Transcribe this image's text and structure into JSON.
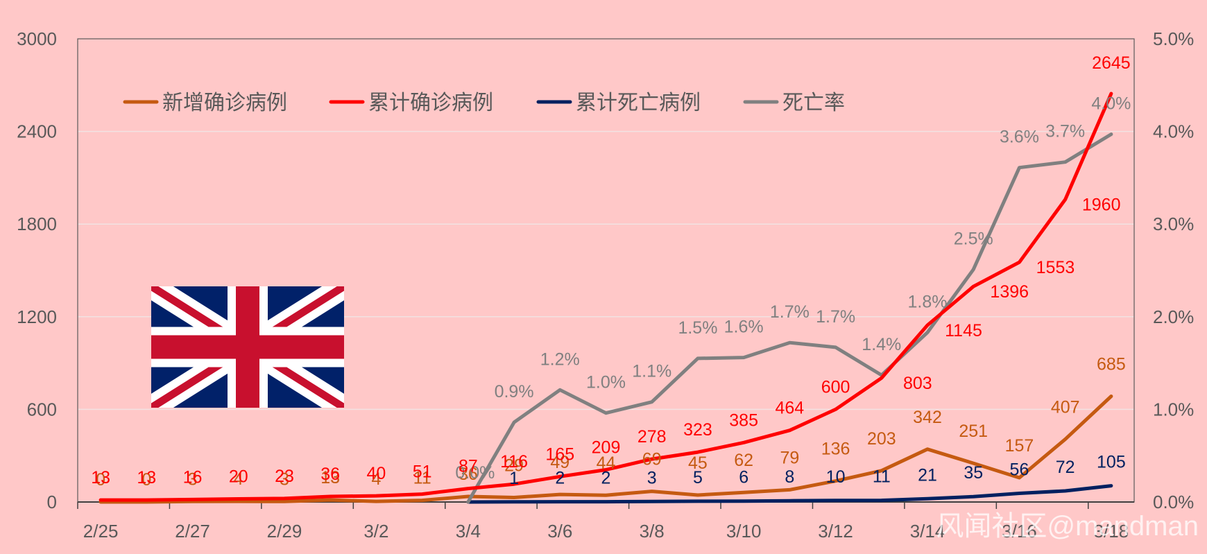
{
  "chart_data": {
    "type": "line",
    "title": "",
    "xlabel": "",
    "ylabel": "",
    "categories": [
      "2/25",
      "2/26",
      "2/27",
      "2/28",
      "2/29",
      "3/1",
      "3/2",
      "3/3",
      "3/4",
      "3/5",
      "3/6",
      "3/7",
      "3/8",
      "3/9",
      "3/10",
      "3/11",
      "3/12",
      "3/13",
      "3/14",
      "3/15",
      "3/16",
      "3/17",
      "3/18"
    ],
    "x_tick_labels": [
      "2/25",
      "2/27",
      "2/29",
      "3/2",
      "3/4",
      "3/6",
      "3/8",
      "3/10",
      "3/12",
      "3/14",
      "3/16",
      "3/18"
    ],
    "y_left": {
      "min": 0,
      "max": 3000,
      "ticks": [
        0,
        600,
        1200,
        1800,
        2400,
        3000
      ],
      "tick_labels": [
        "0",
        "600",
        "1200",
        "1800",
        "2400",
        "3000"
      ]
    },
    "y_right": {
      "min": 0,
      "max": 5.0,
      "ticks": [
        0,
        1,
        2,
        3,
        4,
        5
      ],
      "tick_labels": [
        "0.0%",
        "1.0%",
        "2.0%",
        "3.0%",
        "4.0%",
        "5.0%"
      ]
    },
    "grid": true,
    "legend_position": "top-left",
    "series": [
      {
        "name": "新增确诊病例",
        "color": "#c55a11",
        "axis": "left",
        "values": [
          0,
          0,
          3,
          4,
          3,
          13,
          4,
          11,
          36,
          29,
          49,
          44,
          69,
          45,
          62,
          79,
          136,
          203,
          342,
          251,
          157,
          407,
          685
        ],
        "labels": [
          "0",
          "0",
          "3",
          "4",
          "3",
          "13",
          "4",
          "11",
          "36",
          "29",
          "49",
          "44",
          "69",
          "45",
          "62",
          "79",
          "136",
          "203",
          "342",
          "251",
          "157",
          "407",
          "685"
        ]
      },
      {
        "name": "累计确诊病例",
        "color": "#ff0000",
        "axis": "left",
        "values": [
          13,
          13,
          16,
          20,
          23,
          36,
          40,
          51,
          87,
          116,
          165,
          209,
          278,
          323,
          385,
          464,
          600,
          803,
          1145,
          1396,
          1553,
          1960,
          2645
        ],
        "labels": [
          "13",
          "13",
          "16",
          "20",
          "23",
          "36",
          "40",
          "51",
          "87",
          "116",
          "165",
          "209",
          "278",
          "323",
          "385",
          "464",
          "600",
          "803",
          "1145",
          "1396",
          "1553",
          "1960",
          "2645"
        ]
      },
      {
        "name": "累计死亡病例",
        "color": "#002060",
        "axis": "left",
        "values": [
          null,
          null,
          null,
          null,
          null,
          null,
          null,
          null,
          0,
          1,
          2,
          2,
          3,
          5,
          6,
          8,
          10,
          11,
          21,
          35,
          56,
          72,
          105
        ],
        "labels": [
          "",
          "",
          "",
          "",
          "",
          "",
          "",
          "",
          "",
          "1",
          "2",
          "2",
          "3",
          "5",
          "6",
          "8",
          "10",
          "11",
          "21",
          "35",
          "56",
          "72",
          "105"
        ]
      },
      {
        "name": "死亡率",
        "color": "#808080",
        "axis": "right",
        "values": [
          null,
          null,
          null,
          null,
          null,
          null,
          null,
          null,
          0.0,
          0.86,
          1.21,
          0.96,
          1.08,
          1.55,
          1.56,
          1.72,
          1.67,
          1.37,
          1.83,
          2.51,
          3.61,
          3.67,
          3.97
        ],
        "labels": [
          "",
          "",
          "",
          "",
          "",
          "",
          "",
          "",
          "0.0%",
          "0.9%",
          "1.2%",
          "1.0%",
          "1.1%",
          "1.5%",
          "1.6%",
          "1.7%",
          "1.7%",
          "1.4%",
          "1.8%",
          "2.5%",
          "3.6%",
          "3.7%",
          "4.0%"
        ]
      }
    ],
    "watermark": "风闻社区@mandman"
  },
  "flag": {
    "colors": {
      "blue": "#012169",
      "red": "#c8102e",
      "white": "#ffffff"
    },
    "icon": "union-jack-flag"
  }
}
